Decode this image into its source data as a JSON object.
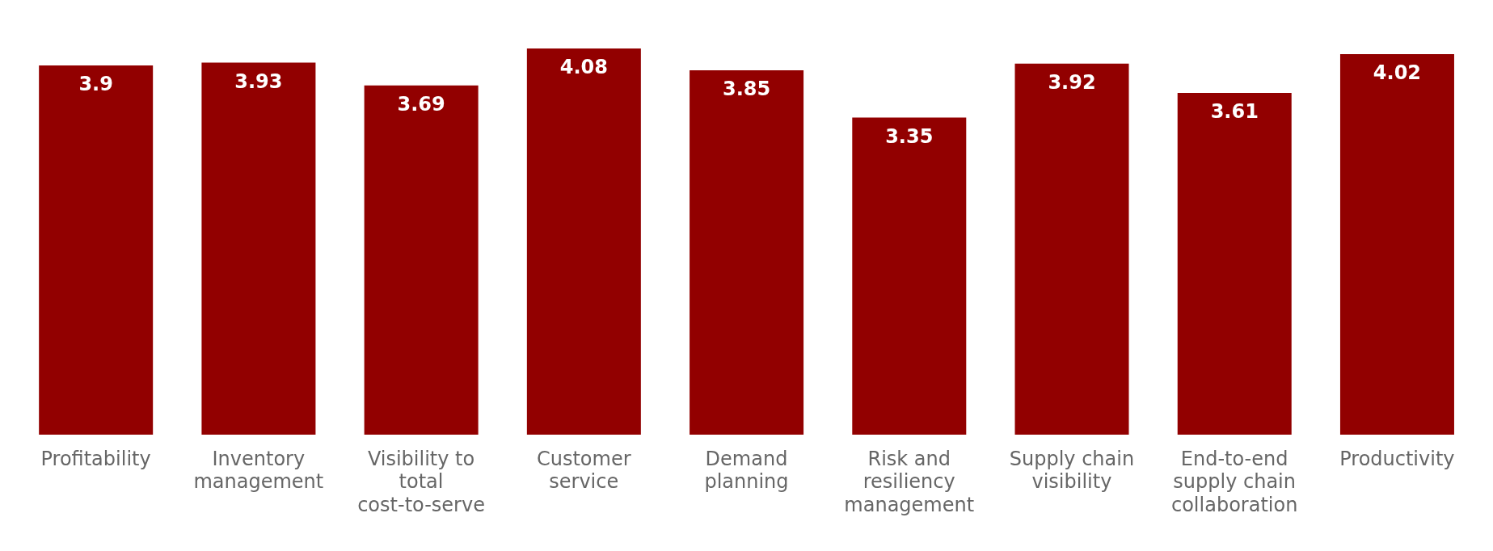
{
  "chart_data": {
    "type": "bar",
    "categories": [
      "Profitability",
      "Inventory management",
      "Visibility to total cost-to-serve",
      "Customer service",
      "Demand planning",
      "Risk and resiliency management",
      "Supply chain visibility",
      "End-to-end supply chain collaboration",
      "Productivity"
    ],
    "values": [
      3.9,
      3.93,
      3.69,
      4.08,
      3.85,
      3.35,
      3.92,
      3.61,
      4.02
    ],
    "color": "#920000",
    "data_labels": true,
    "grid": false,
    "legend": false
  }
}
